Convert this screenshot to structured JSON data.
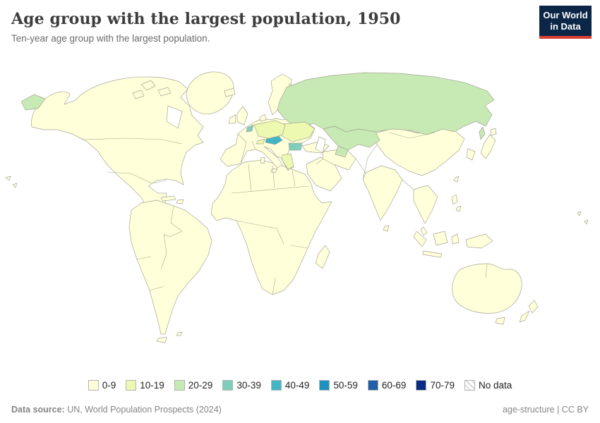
{
  "header": {
    "title": "Age group with the largest population, 1950",
    "subtitle": "Ten-year age group with the largest population."
  },
  "logo": {
    "line1": "Our World",
    "line2": "in Data",
    "bg_color": "#0b2647",
    "accent_color": "#dc3f34"
  },
  "legend": {
    "items": [
      {
        "label": "0-9",
        "color": "#ffffd9"
      },
      {
        "label": "10-19",
        "color": "#edf8b1"
      },
      {
        "label": "20-29",
        "color": "#c7e9b4"
      },
      {
        "label": "30-39",
        "color": "#7fcdbb"
      },
      {
        "label": "40-49",
        "color": "#41b6c4"
      },
      {
        "label": "50-59",
        "color": "#1d91c0"
      },
      {
        "label": "60-69",
        "color": "#225ea8"
      },
      {
        "label": "70-79",
        "color": "#0c2c84"
      },
      {
        "label": "No data",
        "pattern": "hatch"
      }
    ]
  },
  "map": {
    "default_value": "0-9",
    "border_color": "#a8a697",
    "ocean_color": "#ffffff",
    "regions": {
      "russia": "20-29",
      "chukotka": "20-29",
      "kazakhstan-central-asia": "20-29",
      "germany-central-europe": "10-19",
      "eastern-europe": "10-19",
      "greece": "10-19",
      "switzerland": "10-19",
      "belgium": "30-39",
      "bulgaria": "30-39",
      "austria": "40-49"
    }
  },
  "chart_data": {
    "type": "choropleth-map",
    "title": "Age group with the largest population, 1950",
    "subtitle": "Ten-year age group with the largest population.",
    "year": "1950",
    "categories": [
      "0-9",
      "10-19",
      "20-29",
      "30-39",
      "40-49",
      "50-59",
      "60-69",
      "70-79",
      "No data"
    ],
    "category_colors": [
      "#ffffd9",
      "#edf8b1",
      "#c7e9b4",
      "#7fcdbb",
      "#41b6c4",
      "#1d91c0",
      "#225ea8",
      "#0c2c84",
      "hatch"
    ],
    "legend_position": "bottom",
    "observations": {
      "most_of_world_americas_africa_most_asia_oceania": "0-9",
      "germany-central-europe": "10-19",
      "ukraine-romania-hungary-eastern-europe": "10-19",
      "greece-balkans": "10-19",
      "switzerland": "10-19",
      "russia": "20-29",
      "kazakhstan-and-central-asia": "20-29",
      "belgium": "30-39",
      "bulgaria": "30-39",
      "austria": "40-49"
    }
  },
  "footer": {
    "datasource_label": "Data source:",
    "datasource_text": " UN, World Population Prospects (2024)",
    "right_text": "age-structure | CC BY"
  }
}
